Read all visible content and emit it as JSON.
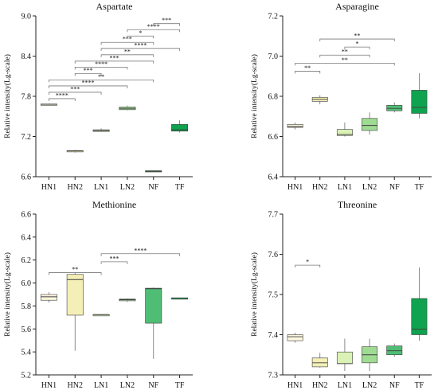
{
  "colors": {
    "HN1": "#fbf6dd",
    "HN2": "#f3efb6",
    "LN1": "#daf2b5",
    "LN2": "#9fdb92",
    "NF": "#4fbe74",
    "TF": "#0fa24f",
    "box_edge": "#3f3f3f",
    "whisker": "#6e6e6e",
    "bracket": "#7a7a7a"
  },
  "chart_data": [
    {
      "type": "box",
      "title": "Aspartate",
      "ylabel": "Relative intensity(Lg-scale)",
      "categories": [
        "HN1",
        "HN2",
        "LN1",
        "LN2",
        "NF",
        "TF"
      ],
      "ylim": [
        6.6,
        9.0
      ],
      "yticks": [
        "6.6",
        "7.2",
        "7.8",
        "8.4",
        "9.0"
      ],
      "boxes": [
        {
          "category": "HN1",
          "min": 7.675,
          "q1": 7.675,
          "median": 7.68,
          "q3": 7.685,
          "max": 7.69
        },
        {
          "category": "HN2",
          "min": 6.96,
          "q1": 6.97,
          "median": 6.985,
          "q3": 6.99,
          "max": 7.0
        },
        {
          "category": "LN1",
          "min": 7.27,
          "q1": 7.275,
          "median": 7.29,
          "q3": 7.3,
          "max": 7.32
        },
        {
          "category": "LN2",
          "min": 7.59,
          "q1": 7.6,
          "median": 7.62,
          "q3": 7.64,
          "max": 7.66
        },
        {
          "category": "NF",
          "min": 6.67,
          "q1": 6.675,
          "median": 6.68,
          "q3": 6.69,
          "max": 6.695
        },
        {
          "category": "TF",
          "min": 7.26,
          "q1": 7.28,
          "median": 7.3,
          "q3": 7.38,
          "max": 7.44
        }
      ],
      "significance": [
        {
          "from": "HN1",
          "to": "HN2",
          "label": "****",
          "y": 7.765
        },
        {
          "from": "HN1",
          "to": "LN1",
          "label": "***",
          "y": 7.86
        },
        {
          "from": "HN1",
          "to": "LN2",
          "label": "****",
          "y": 7.955
        },
        {
          "from": "HN1",
          "to": "NF",
          "label": "**",
          "y": 8.045
        },
        {
          "from": "HN2",
          "to": "LN1",
          "label": "***",
          "y": 8.14
        },
        {
          "from": "HN2",
          "to": "LN2",
          "label": "****",
          "y": 8.235
        },
        {
          "from": "HN2",
          "to": "NF",
          "label": "***",
          "y": 8.325
        },
        {
          "from": "LN1",
          "to": "NF",
          "label": "**",
          "y": 8.42
        },
        {
          "from": "LN1",
          "to": "TF",
          "label": "****",
          "y": 8.515
        },
        {
          "from": "LN1",
          "to": "NF",
          "label": "***",
          "y": 8.605
        },
        {
          "from": "LN2",
          "to": "NF",
          "label": "*",
          "y": 8.7
        },
        {
          "from": "LN2",
          "to": "TF",
          "label": "****",
          "y": 8.795
        },
        {
          "from": "NF",
          "to": "TF",
          "label": "***",
          "y": 8.885
        }
      ]
    },
    {
      "type": "box",
      "title": "Asparagine",
      "ylabel": "Relative intensity(Lg-scale)",
      "categories": [
        "HN1",
        "HN2",
        "LN1",
        "LN2",
        "NF",
        "TF"
      ],
      "ylim": [
        6.4,
        7.2
      ],
      "yticks": [
        "6.4",
        "6.6",
        "6.8",
        "7.0",
        "7.2"
      ],
      "boxes": [
        {
          "category": "HN1",
          "min": 6.635,
          "q1": 6.645,
          "median": 6.65,
          "q3": 6.66,
          "max": 6.67
        },
        {
          "category": "HN2",
          "min": 6.76,
          "q1": 6.775,
          "median": 6.785,
          "q3": 6.795,
          "max": 6.805
        },
        {
          "category": "LN1",
          "min": 6.6,
          "q1": 6.605,
          "median": 6.61,
          "q3": 6.635,
          "max": 6.67
        },
        {
          "category": "LN2",
          "min": 6.61,
          "q1": 6.63,
          "median": 6.655,
          "q3": 6.69,
          "max": 6.72
        },
        {
          "category": "NF",
          "min": 6.72,
          "q1": 6.728,
          "median": 6.74,
          "q3": 6.755,
          "max": 6.77
        },
        {
          "category": "TF",
          "min": 6.69,
          "q1": 6.715,
          "median": 6.745,
          "q3": 6.83,
          "max": 6.915
        }
      ],
      "significance": [
        {
          "from": "HN1",
          "to": "HN2",
          "label": "**",
          "y": 6.925
        },
        {
          "from": "HN1",
          "to": "NF",
          "label": "**",
          "y": 6.965
        },
        {
          "from": "HN2",
          "to": "LN2",
          "label": "**",
          "y": 7.005
        },
        {
          "from": "LN1",
          "to": "LN2",
          "label": "*",
          "y": 7.045
        },
        {
          "from": "HN2",
          "to": "NF",
          "label": "**",
          "y": 7.085
        }
      ]
    },
    {
      "type": "box",
      "title": "Methionine",
      "ylabel": "Relative intensity(Lg-scale)",
      "categories": [
        "HN1",
        "HN2",
        "LN1",
        "LN2",
        "NF",
        "TF"
      ],
      "ylim": [
        5.2,
        6.6
      ],
      "yticks": [
        "5.2",
        "5.4",
        "5.6",
        "5.8",
        "6.0",
        "6.2",
        "6.4",
        "6.6"
      ],
      "boxes": [
        {
          "category": "HN1",
          "min": 5.83,
          "q1": 5.85,
          "median": 5.88,
          "q3": 5.9,
          "max": 5.92
        },
        {
          "category": "HN2",
          "min": 5.41,
          "q1": 5.72,
          "median": 6.03,
          "q3": 6.075,
          "max": 6.09
        },
        {
          "category": "LN1",
          "min": 5.725,
          "q1": 5.725,
          "median": 5.725,
          "q3": 5.725,
          "max": 5.725
        },
        {
          "category": "LN2",
          "min": 5.835,
          "q1": 5.845,
          "median": 5.855,
          "q3": 5.86,
          "max": 5.865
        },
        {
          "category": "NF",
          "min": 5.34,
          "q1": 5.65,
          "median": 5.95,
          "q3": 5.955,
          "max": 5.96
        },
        {
          "category": "TF",
          "min": 5.87,
          "q1": 5.87,
          "median": 5.87,
          "q3": 5.87,
          "max": 5.87
        }
      ],
      "significance": [
        {
          "from": "HN1",
          "to": "LN1",
          "label": "**",
          "y": 6.09
        },
        {
          "from": "LN1",
          "to": "LN2",
          "label": "***",
          "y": 6.185
        },
        {
          "from": "LN1",
          "to": "TF",
          "label": "****",
          "y": 6.255
        }
      ]
    },
    {
      "type": "box",
      "title": "Threonine",
      "ylabel": "Relative intensity(Lg-scale)",
      "categories": [
        "HN1",
        "HN2",
        "LN1",
        "LN2",
        "NF",
        "TF"
      ],
      "ylim": [
        7.3,
        7.7
      ],
      "yticks": [
        "7.3",
        "7.4",
        "7.5",
        "7.6",
        "7.7"
      ],
      "boxes": [
        {
          "category": "HN1",
          "min": 7.38,
          "q1": 7.385,
          "median": 7.395,
          "q3": 7.4,
          "max": 7.405
        },
        {
          "category": "HN2",
          "min": 7.318,
          "q1": 7.32,
          "median": 7.33,
          "q3": 7.342,
          "max": 7.355
        },
        {
          "category": "LN1",
          "min": 7.31,
          "q1": 7.328,
          "median": 7.328,
          "q3": 7.357,
          "max": 7.39
        },
        {
          "category": "LN2",
          "min": 7.31,
          "q1": 7.33,
          "median": 7.35,
          "q3": 7.37,
          "max": 7.39
        },
        {
          "category": "NF",
          "min": 7.345,
          "q1": 7.35,
          "median": 7.36,
          "q3": 7.372,
          "max": 7.378
        },
        {
          "category": "TF",
          "min": 7.385,
          "q1": 7.4,
          "median": 7.414,
          "q3": 7.49,
          "max": 7.567
        }
      ],
      "significance": [
        {
          "from": "HN1",
          "to": "HN2",
          "label": "*",
          "y": 7.573
        }
      ]
    }
  ]
}
